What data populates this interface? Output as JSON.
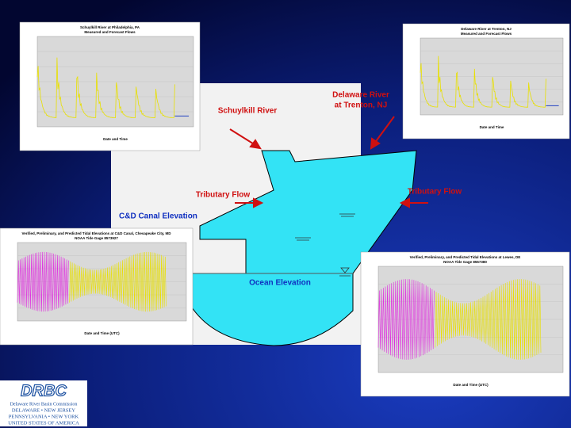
{
  "diagram": {
    "schuylkill_label": "Schuylkill River",
    "delaware_label_line1": "Delaware River",
    "delaware_label_line2": "at Trenton, NJ",
    "tributary_left": "Tributary Flow",
    "tributary_right": "Tributary Flow",
    "canal_label": "C&D Canal Elevation",
    "ocean_label": "Ocean Elevation"
  },
  "thumbnails": [
    {
      "title": "Schuylkill River at Philadelphia, PA",
      "subtitle": "Measured and Forecast Flows",
      "x_label": "Date and Time"
    },
    {
      "title": "Delaware River at Trenton, NJ",
      "subtitle": "Measured and Forecast Flows",
      "x_label": "Date and Time"
    },
    {
      "title": "Verified, Preliminary, and Predicted Tidal Elevations at C&D Canal, Chesapeake City, MD",
      "subtitle": "NOAA Tide Gage 8573927",
      "x_label": "Date and Time (UTC)"
    },
    {
      "title": "Verified, Preliminary, and Predicted Tidal Elevations at Lewes, DE",
      "subtitle": "NOAA Tide Gage 8557380",
      "x_label": "Date and Time (UTC)"
    }
  ],
  "logo": {
    "mark": "DRBC",
    "name": "Delaware River Basin Commission",
    "line1": "DELAWARE  •  NEW JERSEY",
    "line2": "PENNSYLVANIA  •  NEW YORK",
    "line3": "UNITED STATES OF AMERICA"
  }
}
